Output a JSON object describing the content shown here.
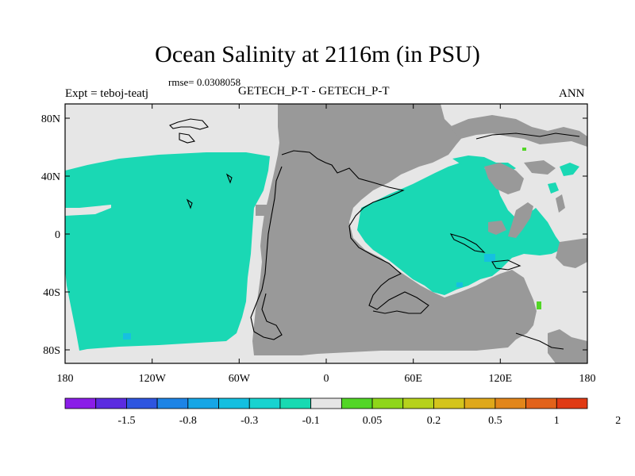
{
  "figure": {
    "title": "Ocean Salinity at 2116m (in PSU)",
    "rmse_text": "rmse= 0.0308058",
    "subtitle": "GETECH_P-T - GETECH_P-T",
    "left_label": "Expt = teboj-teatj",
    "right_label": "ANN"
  },
  "axes": {
    "x_tick_labels": [
      "180",
      "120W",
      "60W",
      "0",
      "60E",
      "120E",
      "180"
    ],
    "y_tick_labels": [
      "80N",
      "40N",
      "0",
      "40S",
      "80S"
    ]
  },
  "colorbar": {
    "colors": [
      "#8a1de8",
      "#5b2be0",
      "#2e55e0",
      "#1d84e6",
      "#16a6e6",
      "#14bfe0",
      "#18d3d0",
      "#18dab2",
      "#e5e5e5",
      "#52d626",
      "#8fd61a",
      "#b6d21c",
      "#d4c41c",
      "#dfa81a",
      "#e2861a",
      "#e2621a",
      "#e03a14"
    ],
    "labels": [
      "-1.5",
      "-0.8",
      "-0.3",
      "-0.1",
      "0.05",
      "0.2",
      "0.5",
      "1",
      "2"
    ]
  },
  "map_colors": {
    "land": "#999999",
    "near_zero": "#e6e6e6",
    "ocean_anomaly": "#1ad8b4",
    "small_negative": "#16c0e0",
    "small_positive": "#52d626"
  }
}
